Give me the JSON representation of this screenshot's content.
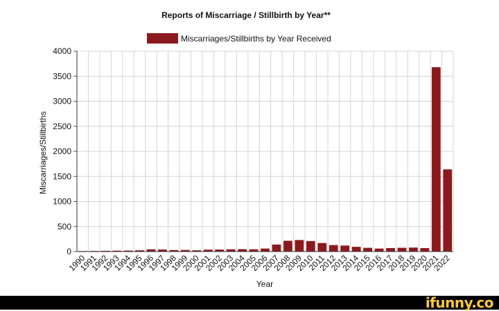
{
  "chart_data": {
    "type": "bar",
    "title": "Reports of Miscarriage / Stillbirth by Year**",
    "xlabel": "Year",
    "ylabel": "Miscarriages/Stillbirths",
    "legend": {
      "position": "top",
      "entries": [
        "Miscarriages/Stillbirths by Year Received"
      ]
    },
    "grid": true,
    "ylim": [
      0,
      4000
    ],
    "yticks": [
      0,
      500,
      1000,
      1500,
      2000,
      2500,
      3000,
      3500,
      4000
    ],
    "categories": [
      "1990",
      "1991",
      "1992",
      "1993",
      "1994",
      "1995",
      "1996",
      "1997",
      "1998",
      "1999",
      "2000",
      "2001",
      "2002",
      "2003",
      "2004",
      "2005",
      "2006",
      "2007",
      "2008",
      "2009",
      "2010",
      "2011",
      "2012",
      "2013",
      "2014",
      "2015",
      "2016",
      "2017",
      "2018",
      "2019",
      "2020",
      "2021",
      "2022"
    ],
    "series": [
      {
        "name": "Miscarriages/Stillbirths by Year Received",
        "color": "#8b1a1f",
        "values": [
          10,
          12,
          15,
          18,
          20,
          25,
          45,
          40,
          30,
          32,
          25,
          38,
          40,
          45,
          48,
          45,
          60,
          140,
          215,
          230,
          210,
          170,
          130,
          120,
          95,
          75,
          60,
          70,
          75,
          80,
          70,
          3680,
          1640
        ]
      }
    ]
  },
  "watermark": "ifunny.co"
}
